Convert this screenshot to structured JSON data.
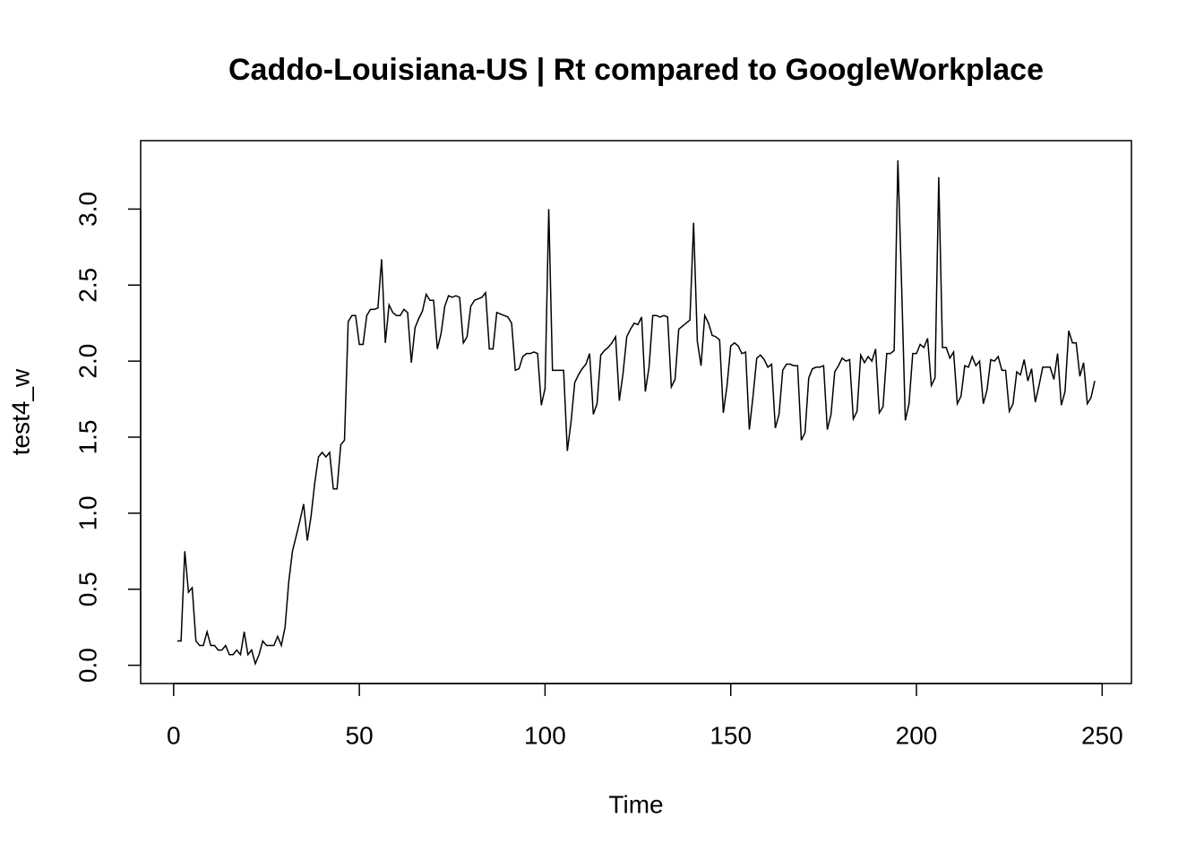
{
  "chart_data": {
    "type": "line",
    "title": "Caddo-Louisiana-US | Rt compared to GoogleWorkplace",
    "x_label": "Time",
    "y_label": "test4_w",
    "x": [
      1,
      2,
      3,
      4,
      5,
      6,
      7,
      8,
      9,
      10,
      11,
      12,
      13,
      14,
      15,
      16,
      17,
      18,
      19,
      20,
      21,
      22,
      23,
      24,
      25,
      26,
      27,
      28,
      29,
      30,
      31,
      32,
      33,
      34,
      35,
      36,
      37,
      38,
      39,
      40,
      41,
      42,
      43,
      44,
      45,
      46,
      47,
      48,
      49,
      50,
      51,
      52,
      53,
      54,
      55,
      56,
      57,
      58,
      59,
      60,
      61,
      62,
      63,
      64,
      65,
      66,
      67,
      68,
      69,
      70,
      71,
      72,
      73,
      74,
      75,
      76,
      77,
      78,
      79,
      80,
      81,
      82,
      83,
      84,
      85,
      86,
      87,
      88,
      89,
      90,
      91,
      92,
      93,
      94,
      95,
      96,
      97,
      98,
      99,
      100,
      101,
      102,
      103,
      104,
      105,
      106,
      107,
      108,
      109,
      110,
      111,
      112,
      113,
      114,
      115,
      116,
      117,
      118,
      119,
      120,
      121,
      122,
      123,
      124,
      125,
      126,
      127,
      128,
      129,
      130,
      131,
      132,
      133,
      134,
      135,
      136,
      137,
      138,
      139,
      140,
      141,
      142,
      143,
      144,
      145,
      146,
      147,
      148,
      149,
      150,
      151,
      152,
      153,
      154,
      155,
      156,
      157,
      158,
      159,
      160,
      161,
      162,
      163,
      164,
      165,
      166,
      167,
      168,
      169,
      170,
      171,
      172,
      173,
      174,
      175,
      176,
      177,
      178,
      179,
      180,
      181,
      182,
      183,
      184,
      185,
      186,
      187,
      188,
      189,
      190,
      191,
      192,
      193,
      194,
      195,
      196,
      197,
      198,
      199,
      200,
      201,
      202,
      203,
      204,
      205,
      206,
      207,
      208,
      209,
      210,
      211,
      212,
      213,
      214,
      215,
      216,
      217,
      218,
      219,
      220,
      221,
      222,
      223,
      224,
      225,
      226,
      227,
      228,
      229,
      230,
      231,
      232,
      233,
      234,
      235,
      236,
      237,
      238,
      239,
      240,
      241,
      242,
      243,
      244,
      245,
      246,
      247,
      248
    ],
    "series": [
      {
        "color": "#000000",
        "values": [
          0.16,
          0.16,
          0.75,
          0.48,
          0.51,
          0.16,
          0.13,
          0.13,
          0.22,
          0.13,
          0.13,
          0.1,
          0.1,
          0.13,
          0.07,
          0.07,
          0.1,
          0.07,
          0.22,
          0.07,
          0.1,
          0.01,
          0.07,
          0.16,
          0.13,
          0.13,
          0.13,
          0.19,
          0.13,
          0.25,
          0.55,
          0.75,
          0.85,
          0.95,
          1.06,
          0.82,
          0.98,
          1.2,
          1.37,
          1.4,
          1.37,
          1.4,
          1.16,
          1.16,
          1.45,
          1.48,
          2.26,
          2.3,
          2.3,
          2.11,
          2.11,
          2.3,
          2.34,
          2.34,
          2.35,
          2.67,
          2.12,
          2.37,
          2.32,
          2.3,
          2.3,
          2.34,
          2.32,
          1.99,
          2.22,
          2.28,
          2.33,
          2.44,
          2.4,
          2.4,
          2.08,
          2.18,
          2.36,
          2.43,
          2.42,
          2.43,
          2.42,
          2.12,
          2.16,
          2.36,
          2.4,
          2.41,
          2.42,
          2.45,
          2.08,
          2.08,
          2.32,
          2.31,
          2.3,
          2.29,
          2.25,
          1.94,
          1.95,
          2.03,
          2.05,
          2.05,
          2.06,
          2.05,
          1.71,
          1.82,
          3.0,
          1.94,
          1.94,
          1.94,
          1.94,
          1.41,
          1.6,
          1.86,
          1.91,
          1.95,
          1.98,
          2.05,
          1.65,
          1.72,
          2.04,
          2.07,
          2.09,
          2.12,
          2.16,
          1.74,
          1.92,
          2.16,
          2.21,
          2.25,
          2.24,
          2.29,
          1.8,
          1.96,
          2.3,
          2.3,
          2.29,
          2.3,
          2.29,
          1.83,
          1.88,
          2.21,
          2.23,
          2.25,
          2.27,
          2.91,
          2.13,
          1.97,
          2.3,
          2.25,
          2.17,
          2.16,
          2.14,
          1.66,
          1.84,
          2.1,
          2.12,
          2.1,
          2.05,
          2.06,
          1.55,
          1.77,
          2.02,
          2.04,
          2.01,
          1.96,
          1.98,
          1.56,
          1.65,
          1.94,
          1.98,
          1.98,
          1.97,
          1.97,
          1.48,
          1.53,
          1.89,
          1.95,
          1.96,
          1.96,
          1.97,
          1.55,
          1.65,
          1.93,
          1.97,
          2.02,
          2.0,
          2.01,
          1.62,
          1.67,
          2.04,
          1.99,
          2.03,
          2.0,
          2.08,
          1.66,
          1.7,
          2.05,
          2.05,
          2.07,
          3.32,
          2.5,
          1.61,
          1.72,
          2.05,
          2.05,
          2.11,
          2.09,
          2.15,
          1.84,
          1.89,
          3.21,
          2.09,
          2.09,
          2.02,
          2.06,
          1.72,
          1.77,
          1.97,
          1.96,
          2.03,
          1.97,
          2.0,
          1.72,
          1.81,
          2.01,
          2.0,
          2.03,
          1.94,
          1.94,
          1.67,
          1.72,
          1.93,
          1.91,
          2.01,
          1.87,
          1.95,
          1.73,
          1.84,
          1.96,
          1.96,
          1.96,
          1.88,
          2.05,
          1.71,
          1.8,
          2.2,
          2.12,
          2.12,
          1.9,
          1.99,
          1.72,
          1.76,
          1.87
        ]
      }
    ],
    "xlim": [
      -8.88,
      257.88
    ],
    "xticks": [
      0,
      50,
      100,
      150,
      200,
      250
    ],
    "ylim": [
      -0.12,
      3.45
    ],
    "yticks": [
      {
        "value": 0,
        "label": "0.0"
      },
      0.5,
      {
        "value": 1,
        "label": "1.0"
      },
      1.5,
      {
        "value": 2,
        "label": "2.0"
      },
      2.5,
      {
        "value": 3,
        "label": "3.0"
      }
    ]
  }
}
